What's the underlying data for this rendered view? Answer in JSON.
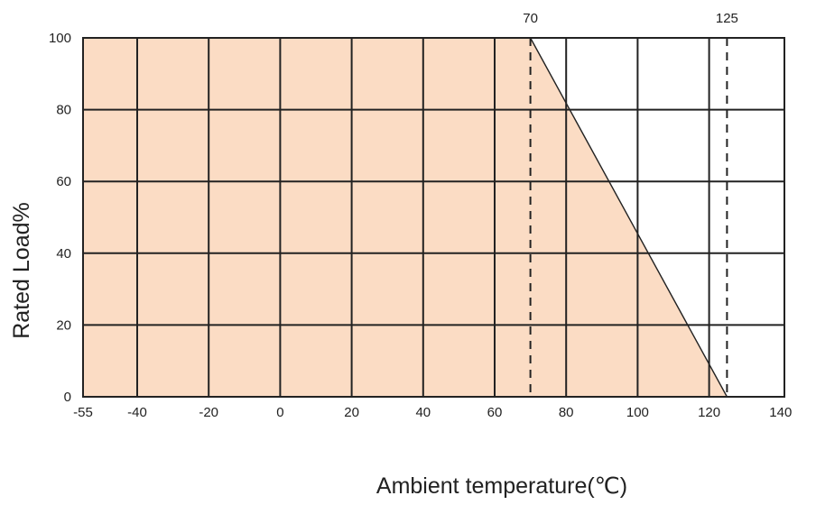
{
  "chart_data": {
    "type": "line",
    "title": "",
    "xlabel": "Ambient temperature(℃)",
    "ylabel": "Rated Load%",
    "x_tick_labels": [
      "-55",
      "-40",
      "-20",
      "0",
      "20",
      "40",
      "60",
      "80",
      "100",
      "120",
      "140"
    ],
    "y_tick_labels": [
      "0",
      "20",
      "40",
      "60",
      "80",
      "100"
    ],
    "x_gridlines": [
      -40,
      -20,
      0,
      20,
      40,
      60,
      80,
      100,
      120
    ],
    "y_gridlines": [
      20,
      40,
      60,
      80
    ],
    "xlim": [
      -55,
      140
    ],
    "ylim": [
      0,
      100
    ],
    "grid": true,
    "series": [
      {
        "x": [
          -55,
          70,
          125
        ],
        "y": [
          100,
          100,
          0
        ],
        "fill_below": true
      }
    ],
    "reference_lines": [
      {
        "x": 70,
        "label": "70",
        "style": "dashed"
      },
      {
        "x": 125,
        "label": "125",
        "style": "dashed"
      }
    ],
    "colors": {
      "fill": "#fbdcc4",
      "grid": "#222222",
      "line": "#222222",
      "text": "#222222"
    }
  }
}
